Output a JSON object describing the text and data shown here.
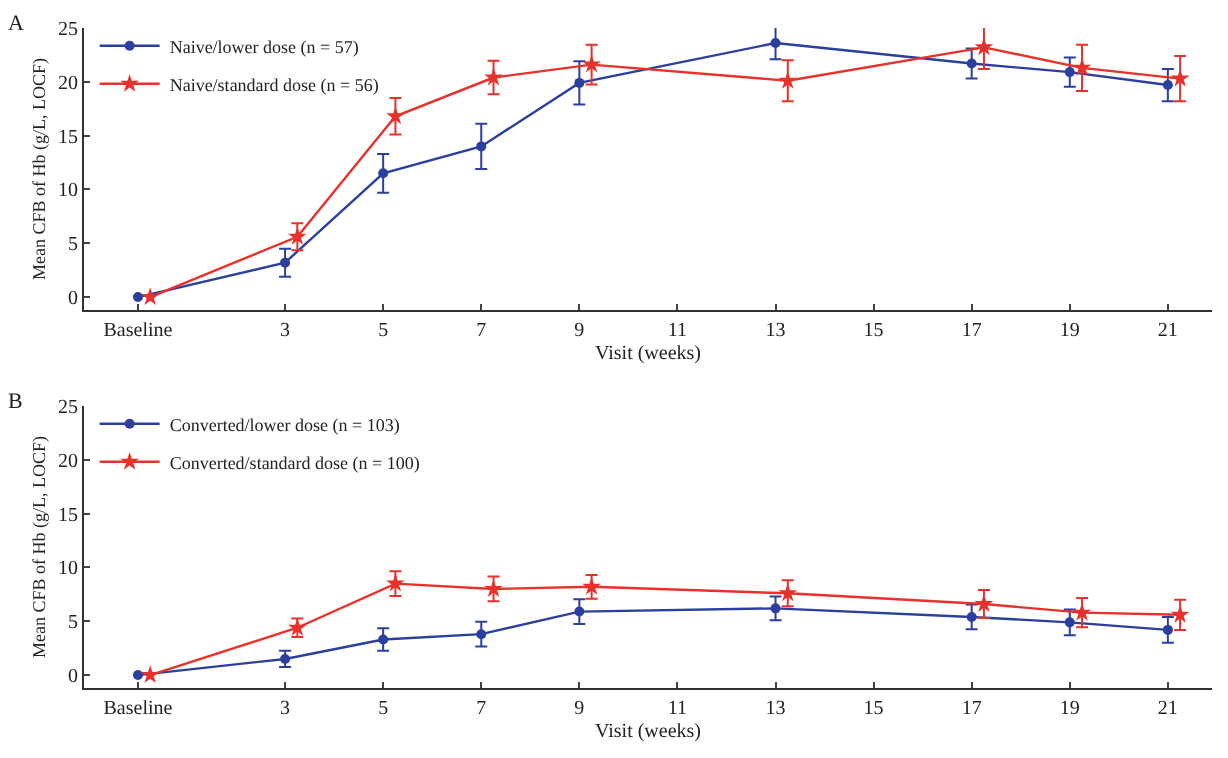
{
  "chart_data": [
    {
      "type": "line",
      "annotations": [
        "A"
      ],
      "xlabel": "Visit (weeks)",
      "ylabel": "Mean CFB of Hb (g/L, LOCF)",
      "x": [
        0,
        3,
        5,
        7,
        9,
        13,
        17,
        19,
        21
      ],
      "xlim": [
        -1.1,
        21.9
      ],
      "xticks": [
        {
          "value": 0,
          "label": "Baseline"
        },
        3,
        5,
        7,
        9,
        11,
        13,
        15,
        17,
        19,
        21
      ],
      "ylim": [
        -1.2,
        25
      ],
      "yticks": [
        0,
        5,
        10,
        15,
        20,
        25
      ],
      "grid": false,
      "legend": "top left",
      "series": [
        {
          "name": "Naive/lower dose (n = 57)",
          "color": "#2b3f9e",
          "marker": "circle",
          "values": [
            0,
            3.2,
            11.5,
            14,
            19.9,
            23.6,
            21.7,
            20.9,
            19.7
          ],
          "errors": [
            null,
            1.3,
            1.8,
            2.1,
            2,
            1.5,
            1.4,
            1.35,
            1.5
          ]
        },
        {
          "name": "Naive/standard dose (n = 56)",
          "color": "#e8312a",
          "marker": "star",
          "x": [
            0.25,
            3.25,
            5.25,
            7.25,
            9.25,
            13.25,
            17.25,
            19.25,
            21.25
          ],
          "values": [
            0,
            5.6,
            16.8,
            20.4,
            21.6,
            20.1,
            23.2,
            21.3,
            20.3
          ],
          "errors": [
            null,
            1.25,
            1.7,
            1.55,
            1.85,
            1.9,
            2,
            2.15,
            2.1
          ]
        }
      ]
    },
    {
      "type": "line",
      "annotations": [
        "B"
      ],
      "xlabel": "Visit (weeks)",
      "ylabel": "Mean CFB of Hb (g/L, LOCF)",
      "x": [
        0,
        3,
        5,
        7,
        9,
        13,
        17,
        19,
        21
      ],
      "xlim": [
        -1.1,
        21.9
      ],
      "xticks": [
        {
          "value": 0,
          "label": "Baseline"
        },
        3,
        5,
        7,
        9,
        11,
        13,
        15,
        17,
        19,
        21
      ],
      "ylim": [
        -1.2,
        25
      ],
      "yticks": [
        0,
        5,
        10,
        15,
        20,
        25
      ],
      "grid": false,
      "legend": "top left",
      "series": [
        {
          "name": "Converted/lower dose (n = 103)",
          "color": "#2b3f9e",
          "marker": "circle",
          "values": [
            0,
            1.5,
            3.3,
            3.8,
            5.9,
            6.2,
            5.4,
            4.9,
            4.2
          ],
          "errors": [
            null,
            0.75,
            1.05,
            1.15,
            1.15,
            1.1,
            1.15,
            1.2,
            1.2
          ]
        },
        {
          "name": "Converted/standard dose (n = 100)",
          "color": "#e8312a",
          "marker": "star",
          "x": [
            0.25,
            3.25,
            5.25,
            7.25,
            9.25,
            13.25,
            17.25,
            19.25,
            21.25
          ],
          "values": [
            0,
            4.4,
            8.5,
            8.0,
            8.2,
            7.6,
            6.6,
            5.8,
            5.6
          ],
          "errors": [
            null,
            0.85,
            1.15,
            1.15,
            1.1,
            1.2,
            1.3,
            1.35,
            1.4
          ]
        }
      ]
    }
  ]
}
